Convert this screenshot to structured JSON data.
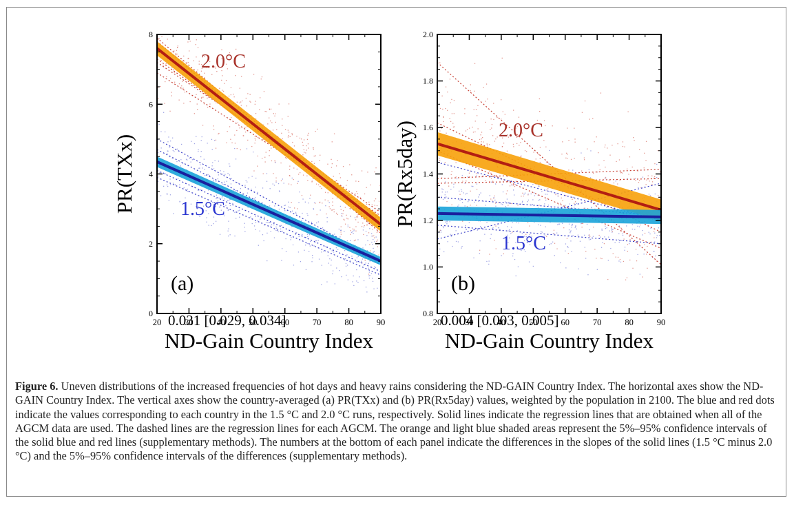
{
  "colors": {
    "red_line": "#b31e12",
    "red_band": "#f7a10a",
    "red_dots": "#d9746a",
    "red_dash": "#c84034",
    "red_text": "#a8322a",
    "blue_line": "#1a1f9e",
    "blue_band": "#1aa3d9",
    "blue_dots": "#7f86db",
    "blue_dash": "#3b40c8",
    "blue_text": "#2a35d0"
  },
  "chart_data": [
    {
      "type": "scatter",
      "panel_label": "(a)",
      "ylabel": "PR(TXx)",
      "xlabel": "ND-Gain Country Index",
      "xlim": [
        20,
        90
      ],
      "ylim": [
        0,
        8
      ],
      "xticks": [
        "20",
        "30",
        "40",
        "50",
        "60",
        "70",
        "80",
        "90"
      ],
      "yticks": [
        "0",
        "2",
        "4",
        "6",
        "8"
      ],
      "ytick_values": [
        0,
        2,
        4,
        6,
        8
      ],
      "slope_difference": "0.031 [0.029, 0.034]",
      "series": [
        {
          "name": "2.0°C",
          "regression": {
            "x": [
              20,
              90
            ],
            "y": [
              7.6,
              2.55
            ]
          },
          "band": {
            "x": [
              20,
              90
            ],
            "lower": [
              7.4,
              2.35
            ],
            "upper": [
              7.8,
              2.75
            ]
          },
          "dashed": [
            {
              "x": [
                20,
                90
              ],
              "y": [
                7.8,
                2.3
              ]
            },
            {
              "x": [
                20,
                90
              ],
              "y": [
                7.3,
                2.7
              ]
            },
            {
              "x": [
                20,
                90
              ],
              "y": [
                6.9,
                2.8
              ]
            },
            {
              "x": [
                20,
                90
              ],
              "y": [
                7.9,
                2.4
              ]
            },
            {
              "x": [
                20,
                90
              ],
              "y": [
                7.2,
                2.9
              ]
            }
          ],
          "dot_cloud": {
            "x_range": [
              20,
              90
            ],
            "spread": 1.2
          }
        },
        {
          "name": "1.5°C",
          "regression": {
            "x": [
              20,
              90
            ],
            "y": [
              4.35,
              1.5
            ]
          },
          "band": {
            "x": [
              20,
              90
            ],
            "lower": [
              4.2,
              1.38
            ],
            "upper": [
              4.5,
              1.62
            ]
          },
          "dashed": [
            {
              "x": [
                20,
                90
              ],
              "y": [
                5.0,
                1.5
              ]
            },
            {
              "x": [
                20,
                90
              ],
              "y": [
                4.1,
                1.2
              ]
            },
            {
              "x": [
                20,
                90
              ],
              "y": [
                4.7,
                1.4
              ]
            },
            {
              "x": [
                20,
                90
              ],
              "y": [
                3.9,
                1.1
              ]
            }
          ],
          "dot_cloud": {
            "x_range": [
              20,
              90
            ],
            "spread": 1.1
          }
        }
      ]
    },
    {
      "type": "scatter",
      "panel_label": "(b)",
      "ylabel": "PR(Rx5day)",
      "xlabel": "ND-Gain Country Index",
      "xlim": [
        20,
        90
      ],
      "ylim": [
        0.8,
        2.0
      ],
      "xticks": [
        "20",
        "30",
        "40",
        "50",
        "60",
        "70",
        "80",
        "90"
      ],
      "yticks": [
        "0.8",
        "1.0",
        "1.2",
        "1.4",
        "1.6",
        "1.8",
        "2.0"
      ],
      "ytick_values": [
        0.8,
        1.0,
        1.2,
        1.4,
        1.6,
        1.8,
        2.0
      ],
      "slope_difference": "0.004 [0.003, 0.005]",
      "series": [
        {
          "name": "2.0°C",
          "regression": {
            "x": [
              20,
              90
            ],
            "y": [
              1.53,
              1.245
            ]
          },
          "band": {
            "x": [
              20,
              90
            ],
            "lower": [
              1.48,
              1.2
            ],
            "upper": [
              1.58,
              1.29
            ]
          },
          "dashed": [
            {
              "x": [
                20,
                90
              ],
              "y": [
                1.88,
                1.01
              ]
            },
            {
              "x": [
                20,
                90
              ],
              "y": [
                1.5,
                1.08
              ]
            },
            {
              "x": [
                20,
                90
              ],
              "y": [
                1.38,
                1.42
              ]
            },
            {
              "x": [
                20,
                90
              ],
              "y": [
                1.36,
                1.38
              ]
            },
            {
              "x": [
                20,
                90
              ],
              "y": [
                1.62,
                1.15
              ]
            }
          ],
          "dot_cloud": {
            "x_range": [
              20,
              90
            ],
            "spread": 0.28
          }
        },
        {
          "name": "1.5°C",
          "regression": {
            "x": [
              20,
              90
            ],
            "y": [
              1.23,
              1.215
            ]
          },
          "band": {
            "x": [
              20,
              90
            ],
            "lower": [
              1.2,
              1.185
            ],
            "upper": [
              1.26,
              1.245
            ]
          },
          "dashed": [
            {
              "x": [
                20,
                90
              ],
              "y": [
                1.45,
                1.2
              ]
            },
            {
              "x": [
                20,
                90
              ],
              "y": [
                1.12,
                1.36
              ]
            },
            {
              "x": [
                20,
                90
              ],
              "y": [
                1.3,
                1.22
              ]
            },
            {
              "x": [
                20,
                90
              ],
              "y": [
                1.18,
                1.1
              ]
            }
          ],
          "dot_cloud": {
            "x_range": [
              20,
              90
            ],
            "spread": 0.18
          }
        }
      ]
    }
  ],
  "caption": {
    "label": "Figure 6.",
    "text": " Uneven distributions of the increased frequencies of hot days and heavy rains considering the ND-GAIN Country Index. The horizontal axes show the ND-GAIN Country Index. The vertical axes show the country-averaged (a) PR(TXx) and (b) PR(Rx5day) values, weighted by the population in 2100. The blue and red dots indicate the values corresponding to each country in the 1.5 °C and 2.0 °C runs, respectively. Solid lines indicate the regression lines that are obtained when all of the AGCM data are used. The dashed lines are the regression lines for each AGCM. The orange and light blue shaded areas represent the 5%–95% confidence intervals of the solid blue and red lines (supplementary methods). The numbers at the bottom of each panel indicate the differences in the slopes of the solid lines (1.5 °C minus 2.0 °C) and the 5%–95% confidence intervals of the differences (supplementary methods)."
  }
}
